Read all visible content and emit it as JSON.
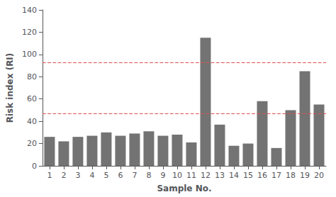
{
  "chart_data": {
    "type": "bar",
    "xlabel": "Sample No.",
    "ylabel": "Risk index (RI)",
    "categories": [
      1,
      2,
      3,
      4,
      5,
      6,
      7,
      8,
      9,
      10,
      11,
      12,
      13,
      14,
      15,
      16,
      17,
      18,
      19,
      20
    ],
    "values": [
      26,
      22,
      26,
      27,
      30,
      27,
      29,
      31,
      27,
      28,
      21,
      115,
      37,
      18,
      20,
      58,
      16,
      50,
      85,
      55
    ],
    "color": "#737373",
    "ylim": [
      0,
      140
    ],
    "yticks": [
      0,
      20,
      40,
      60,
      80,
      100,
      120,
      140
    ],
    "grid": false,
    "reference_lines": [
      {
        "value": 47,
        "color": "#E05050",
        "line_style": "dashed"
      },
      {
        "value": 93,
        "color": "#E05050",
        "line_style": "dashed"
      }
    ]
  }
}
